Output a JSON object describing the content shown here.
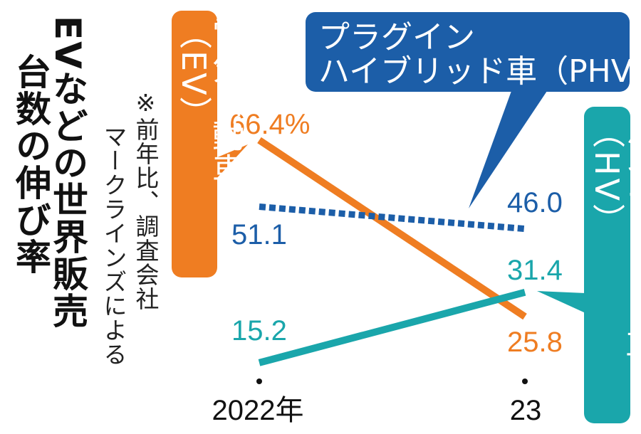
{
  "title": {
    "line1": "EVなどの世界販売",
    "line2": "台数の伸び率"
  },
  "note": {
    "line1": "※前年比、調査会社",
    "line2": "マークラインズによる"
  },
  "colors": {
    "EV": "#ef7d22",
    "PHV": "#1c5ea8",
    "HV": "#1aa6ab",
    "axis": "#111111"
  },
  "chart_data": {
    "type": "line",
    "title": "EVなどの世界販売台数の伸び率",
    "unit": "%",
    "x": [
      "2022年",
      "23"
    ],
    "series": [
      {
        "key": "EV",
        "name": "電気自動車（EV）",
        "values": [
          66.4,
          25.8
        ],
        "labels": [
          "66.4%",
          "25.8"
        ],
        "style": "solid"
      },
      {
        "key": "PHV",
        "name_line1": "プラグイン",
        "name_line2": "ハイブリッド車（PHV）",
        "values": [
          51.1,
          46.0
        ],
        "labels": [
          "51.1",
          "46.0"
        ],
        "style": "dotted"
      },
      {
        "key": "HV",
        "name": "ハイブリッド車（HV）",
        "values": [
          15.2,
          31.4
        ],
        "labels": [
          "15.2",
          "31.4"
        ],
        "style": "solid"
      }
    ],
    "annotation": "※前年比、調査会社マークラインズによる",
    "grid": false,
    "legend": "callout-boxes"
  }
}
